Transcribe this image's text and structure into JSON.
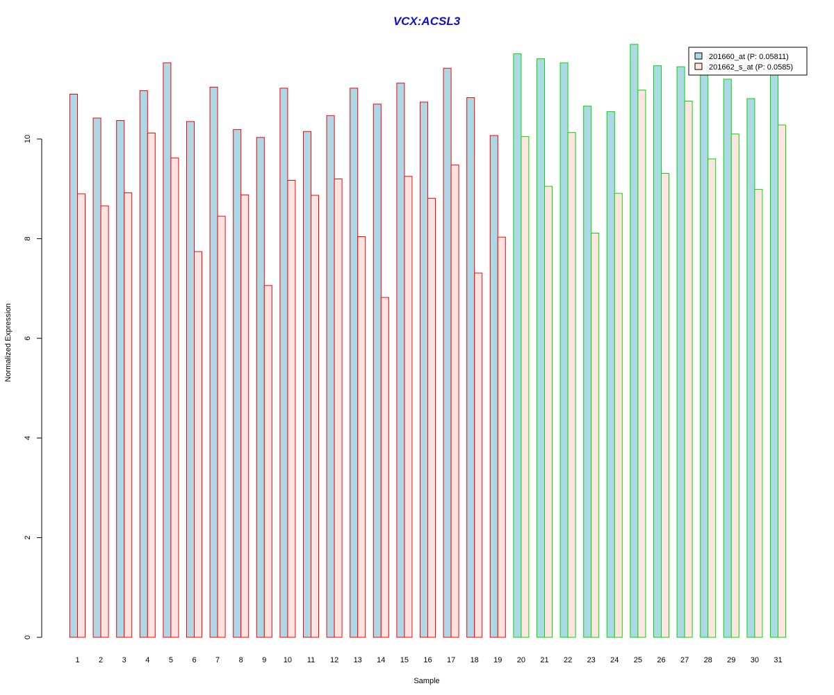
{
  "chart_data": {
    "type": "bar",
    "title": "VCX:ACSL3",
    "xlabel": "Sample",
    "ylabel": "Normalized Expression",
    "ylim": [
      0,
      12
    ],
    "yticks": [
      0,
      2,
      4,
      6,
      8,
      10
    ],
    "grid": false,
    "legend_position": "top-right",
    "categories": [
      "1",
      "2",
      "3",
      "4",
      "5",
      "6",
      "7",
      "8",
      "9",
      "10",
      "11",
      "12",
      "13",
      "14",
      "15",
      "16",
      "17",
      "18",
      "19",
      "20",
      "21",
      "22",
      "23",
      "24",
      "25",
      "26",
      "27",
      "28",
      "29",
      "30",
      "31"
    ],
    "groups": [
      {
        "samples": [
          "1",
          "2",
          "3",
          "4",
          "5",
          "6",
          "7",
          "8",
          "9",
          "10",
          "11",
          "12",
          "13",
          "14",
          "15",
          "16",
          "17",
          "18",
          "19"
        ],
        "border_color": "#ff0000"
      },
      {
        "samples": [
          "20",
          "21",
          "22",
          "23",
          "24",
          "25",
          "26",
          "27",
          "28",
          "29",
          "30",
          "31"
        ],
        "border_color": "#00dd00"
      }
    ],
    "series": [
      {
        "name": "201660_at (P: 0.05811)",
        "fill_color": "#add8e6",
        "values": [
          10.9,
          10.42,
          10.37,
          10.97,
          11.53,
          10.35,
          11.04,
          10.19,
          10.03,
          11.02,
          10.15,
          10.47,
          11.02,
          10.7,
          11.12,
          10.74,
          11.42,
          10.83,
          10.07,
          11.71,
          11.61,
          11.53,
          10.66,
          10.55,
          11.9,
          11.47,
          11.45,
          11.35,
          11.2,
          10.81,
          11.45
        ]
      },
      {
        "name": "201662_s_at (P: 0.0585)",
        "fill_color": "#ffe4e1",
        "values": [
          8.9,
          8.66,
          8.92,
          10.12,
          9.62,
          7.74,
          8.45,
          8.88,
          7.06,
          9.17,
          8.87,
          9.2,
          8.04,
          6.82,
          9.25,
          8.81,
          9.48,
          7.31,
          8.03,
          10.05,
          9.05,
          10.13,
          8.11,
          8.91,
          10.98,
          9.31,
          10.76,
          9.6,
          10.1,
          8.99,
          10.28
        ]
      }
    ]
  }
}
